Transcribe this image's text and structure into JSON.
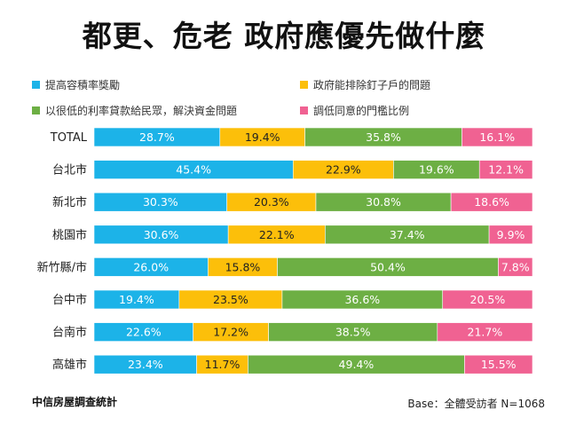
{
  "chart_data": {
    "type": "bar",
    "stacked": true,
    "orientation": "horizontal",
    "title": "都更、危老 政府應優先做什麼",
    "categories": [
      "TOTAL",
      "台北市",
      "新北市",
      "桃園市",
      "新竹縣/市",
      "台中市",
      "台南市",
      "高雄市"
    ],
    "series": [
      {
        "name": "提高容積率獎勵",
        "color": "#1cb3e8",
        "values": [
          28.7,
          45.4,
          30.3,
          30.6,
          26.0,
          19.4,
          22.6,
          23.4
        ]
      },
      {
        "name": "政府能排除釘子戶的問題",
        "color": "#fcbf0a",
        "values": [
          19.4,
          22.9,
          20.3,
          22.1,
          15.8,
          23.5,
          17.2,
          11.7
        ]
      },
      {
        "name": "以很低的利率貸款給民眾，解決資金問題",
        "color": "#6daf44",
        "values": [
          35.8,
          19.6,
          30.8,
          37.4,
          50.4,
          36.6,
          38.5,
          49.4
        ]
      },
      {
        "name": "調低同意的門檻比例",
        "color": "#f06292",
        "values": [
          16.1,
          12.1,
          18.6,
          9.9,
          7.8,
          20.5,
          21.7,
          15.5
        ]
      }
    ],
    "value_labels": [
      [
        "28.7%",
        "45.4%",
        "30.3%",
        "30.6%",
        "26.0%",
        "19.4%",
        "22.6%",
        "23.4%"
      ],
      [
        "19.4%",
        "22.9%",
        "20.3%",
        "22.1%",
        "15.8%",
        "23.5%",
        "17.2%",
        "11.7%"
      ],
      [
        "35.8%",
        "19.6%",
        "30.8%",
        "37.4%",
        "50.4%",
        "36.6%",
        "38.5%",
        "49.4%"
      ],
      [
        "16.1%",
        "12.1%",
        "18.6%",
        "9.9%",
        "7.8%",
        "20.5%",
        "21.7%",
        "15.5%"
      ]
    ],
    "xlim": [
      0,
      100
    ],
    "legend_position": "top",
    "grid": false
  },
  "footer": {
    "source": "中信房屋調查統計",
    "base": "Base：全體受訪者 N=1068"
  }
}
